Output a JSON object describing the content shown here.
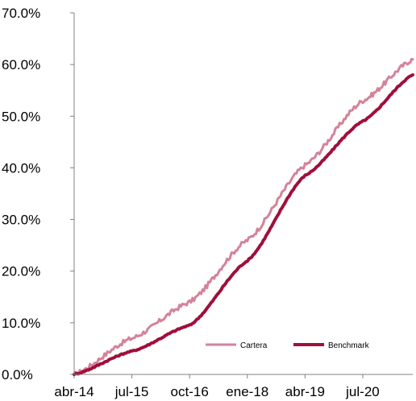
{
  "chart_data": {
    "type": "line",
    "title": "",
    "xlabel": "",
    "ylabel": "",
    "x_tick_labels": [
      "abr-14",
      "jul-15",
      "oct-16",
      "ene-18",
      "abr-19",
      "jul-20"
    ],
    "y_tick_labels": [
      "0.0%",
      "10.0%",
      "20.0%",
      "30.0%",
      "40.0%",
      "50.0%",
      "60.0%",
      "70.0%"
    ],
    "ylim": [
      0,
      70
    ],
    "xlim": [
      "abr-14",
      "ago-21"
    ],
    "grid": false,
    "legend_position": "bottom-right",
    "x": [
      "abr-14",
      "jul-15",
      "oct-16",
      "ene-18",
      "abr-19",
      "jul-20",
      "ago-21"
    ],
    "series": [
      {
        "name": "Cartera",
        "color": "#d4829a",
        "values": [
          0.0,
          7.0,
          14.0,
          26.0,
          40.5,
          53.0,
          61.0
        ]
      },
      {
        "name": "Benchmark",
        "color": "#a00f3c",
        "values": [
          0.0,
          4.5,
          9.5,
          22.0,
          38.5,
          49.0,
          58.0
        ]
      }
    ]
  }
}
